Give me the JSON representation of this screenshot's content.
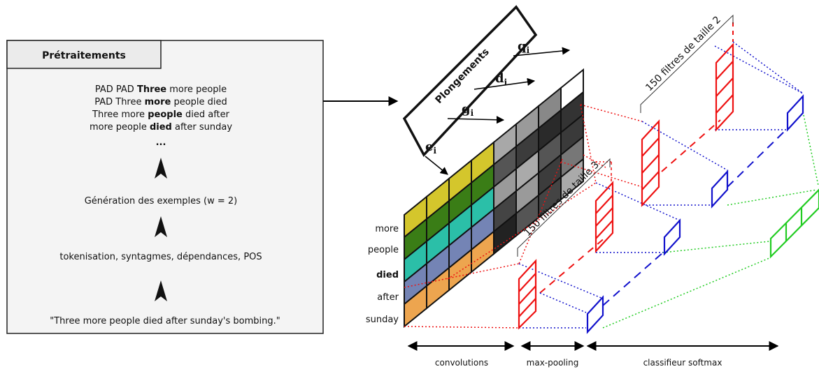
{
  "preprocessing": {
    "title": "Prétraitements",
    "sentences": [
      {
        "pre": "PAD PAD ",
        "bold": "Three",
        "post": " more people"
      },
      {
        "pre": "PAD Three ",
        "bold": "more",
        "post": " people died"
      },
      {
        "pre": "Three more ",
        "bold": "people",
        "post": " died after"
      },
      {
        "pre": "more people ",
        "bold": "died",
        "post": " after sunday"
      }
    ],
    "ellipsis": "...",
    "step_generation": "Génération des exemples (w = 2)",
    "step_tokenisation": "tokenisation, syntagmes, dépendances, POS",
    "input_sentence": "\"Three more people died after sunday's bombing.\""
  },
  "embeddings": {
    "label": "Plongements",
    "vectors": [
      {
        "base": "q",
        "sub": "i"
      },
      {
        "base": "d",
        "sub": "i"
      },
      {
        "base": "g",
        "sub": "i"
      },
      {
        "base": "e",
        "sub": "i"
      }
    ]
  },
  "words": [
    "more",
    "people",
    "died",
    "after",
    "sunday"
  ],
  "filters": {
    "size3": "150 filtres de taille 3",
    "size2": "150 filtres de taille 2"
  },
  "stages": {
    "convolutions": "convolutions",
    "max_pooling": "max-pooling",
    "softmax": "classifieur softmax"
  },
  "colors": {
    "word_rows": [
      "#d4c62c",
      "#3a7d16",
      "#2bbfa8",
      "#7484b5",
      "#eda54f"
    ],
    "filter_red": "#ee1111",
    "pool_blue": "#1111cc",
    "softmax_green": "#22cc22"
  }
}
